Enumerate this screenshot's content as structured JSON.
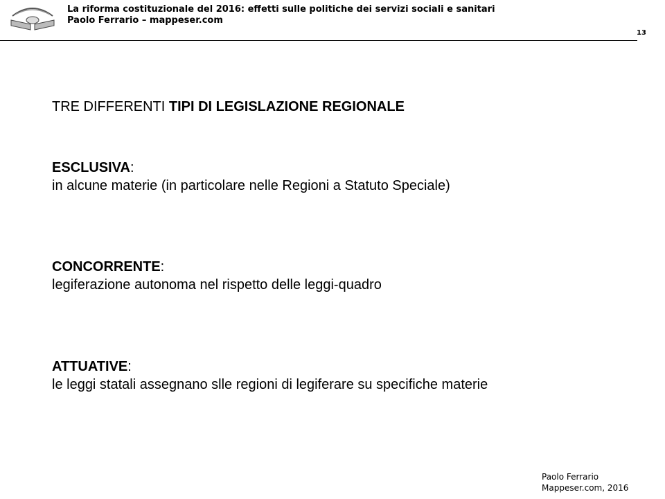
{
  "header": {
    "title": "La riforma costituzionale del 2016: effetti sulle politiche dei servizi sociali e sanitari",
    "subtitle": "Paolo Ferrario – mappeser.com",
    "page_number": "13"
  },
  "slide": {
    "heading_plain": "TRE DIFFERENTI ",
    "heading_bold": "TIPI DI LEGISLAZIONE REGIONALE",
    "items": [
      {
        "term": "ESCLUSIVA",
        "desc": "in alcune materie (in particolare nelle Regioni a Statuto Speciale)"
      },
      {
        "term": "CONCORRENTE",
        "desc": "legiferazione autonoma nel rispetto delle leggi-quadro"
      },
      {
        "term": "ATTUATIVE",
        "desc": "le leggi statali assegnano slle regioni di legiferare su specifiche materie"
      }
    ],
    "colon": ":"
  },
  "footer": {
    "line1": "Paolo Ferrario",
    "line2": "Mappeser.com, 2016"
  }
}
